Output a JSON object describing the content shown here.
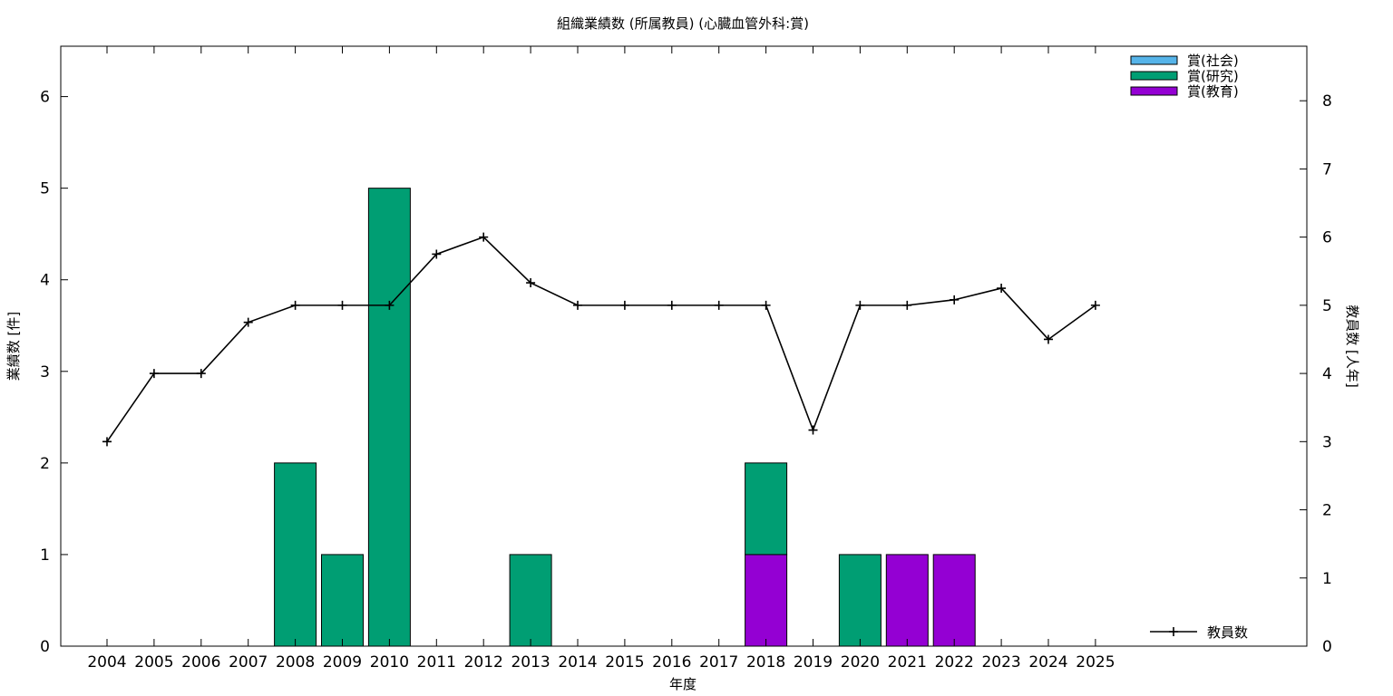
{
  "chart_data": {
    "type": "bar",
    "title": "組織業績数 (所属教員) (心臓血管外科:賞)",
    "xlabel": "年度",
    "ylabel": "業績数 [件]",
    "y2label": "教員数 [人年]",
    "ylim": [
      0,
      6.55
    ],
    "y2lim": [
      0,
      8.8
    ],
    "yticks": [
      0,
      1,
      2,
      3,
      4,
      5,
      6
    ],
    "y2ticks": [
      0,
      1,
      2,
      3,
      4,
      5,
      6,
      7,
      8
    ],
    "categories": [
      "2004",
      "2005",
      "2006",
      "2007",
      "2008",
      "2009",
      "2010",
      "2011",
      "2012",
      "2013",
      "2014",
      "2015",
      "2016",
      "2017",
      "2018",
      "2019",
      "2020",
      "2021",
      "2022",
      "2023",
      "2024",
      "2025"
    ],
    "stacked": true,
    "series": [
      {
        "name": "賞(社会)",
        "color": "#56b4e9",
        "values": [
          0,
          0,
          0,
          0,
          0,
          0,
          0,
          0,
          0,
          0,
          0,
          0,
          0,
          0,
          0,
          0,
          0,
          0,
          0,
          0,
          0,
          0
        ]
      },
      {
        "name": "賞(研究)",
        "color": "#009e73",
        "values": [
          0,
          0,
          0,
          0,
          2,
          1,
          5,
          0,
          0,
          1,
          0,
          0,
          0,
          0,
          1,
          0,
          1,
          0,
          0,
          0,
          0,
          0
        ]
      },
      {
        "name": "賞(教育)",
        "color": "#9400d3",
        "values": [
          0,
          0,
          0,
          0,
          0,
          0,
          0,
          0,
          0,
          0,
          0,
          0,
          0,
          0,
          1,
          0,
          0,
          1,
          1,
          0,
          0,
          0
        ]
      }
    ],
    "line_series": {
      "name": "教員数",
      "axis": "right",
      "color": "#000000",
      "values": [
        3.0,
        4.0,
        4.0,
        4.75,
        5.0,
        5.0,
        5.0,
        5.75,
        6.0,
        5.33,
        5.0,
        5.0,
        5.0,
        5.0,
        5.0,
        3.17,
        5.0,
        5.0,
        5.08,
        5.25,
        4.5,
        5.0
      ]
    },
    "legend_position": "top-right",
    "line_legend_position": "bottom-right",
    "grid": false
  }
}
